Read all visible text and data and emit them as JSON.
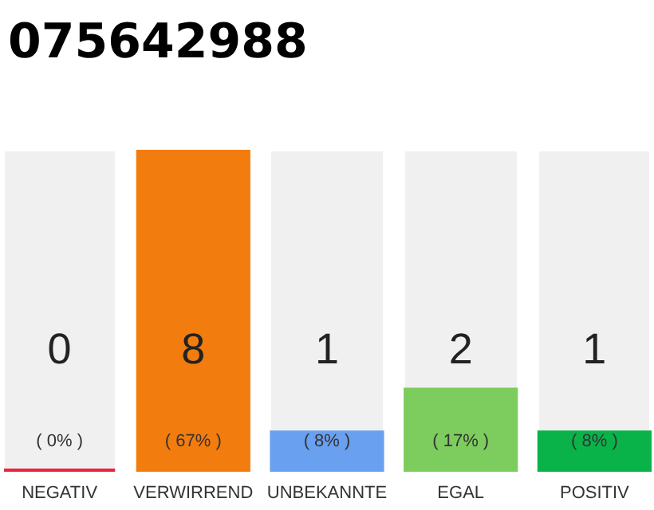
{
  "chart_data": {
    "type": "bar",
    "title": "075642988",
    "categories": [
      "NEGATIV",
      "VERWIRREND",
      "UNBEKANNTE",
      "EGAL",
      "POSITIV"
    ],
    "values": [
      0,
      67,
      8,
      17,
      8
    ],
    "colors": [
      "#e8253c",
      "#f27c0e",
      "#6aa0f0",
      "#7dcc5e",
      "#0ab24a"
    ],
    "value_labels": [
      "( 0% )",
      "( 67% )",
      "( 8% )",
      "( 17% )",
      "( 8% )"
    ],
    "annotations": [
      "0",
      "8",
      "1",
      "2",
      "1"
    ],
    "grid": false
  }
}
